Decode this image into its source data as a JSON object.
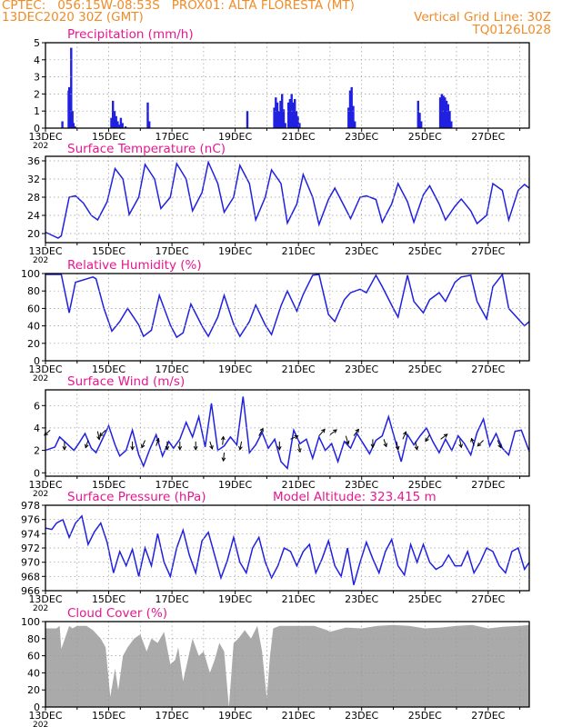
{
  "header": {
    "line1": "CPTEC:   056:15W-08:53S   PROX01: ALTA FLORESTA (MT)",
    "line2_left": "13DEC2020 30Z (GMT)",
    "line2_right": "Vertical Grid Line: 30Z",
    "line3_right": "TQ0126L028"
  },
  "colors": {
    "header": "#f08c28",
    "title": "#e8178f",
    "line": "#2020e0",
    "cloud": "#aaaaaa",
    "grid": "#999999",
    "arrow": "#000000"
  },
  "x_ticks": [
    "13DEC",
    "15DEC",
    "17DEC",
    "19DEC",
    "21DEC",
    "23DEC",
    "25DEC",
    "27DEC"
  ],
  "year_fragment": "202",
  "chart_data": [
    {
      "type": "bar",
      "title": "Precipitation (mm/h)",
      "xlim": [
        0,
        15.3
      ],
      "ylim": [
        0,
        5
      ],
      "yticks": [
        "0",
        "1",
        "2",
        "3",
        "4",
        "5"
      ],
      "bars": [
        [
          0.5,
          0.4
        ],
        [
          0.6,
          0.0
        ],
        [
          0.7,
          2.2
        ],
        [
          0.72,
          2.4
        ],
        [
          0.75,
          1.4
        ],
        [
          0.78,
          4.7
        ],
        [
          0.82,
          1.0
        ],
        [
          0.85,
          0.3
        ],
        [
          0.9,
          0.1
        ],
        [
          2.05,
          0.6
        ],
        [
          2.1,
          1.6
        ],
        [
          2.15,
          1.0
        ],
        [
          2.2,
          0.7
        ],
        [
          2.25,
          0.4
        ],
        [
          2.3,
          0.2
        ],
        [
          2.35,
          0.6
        ],
        [
          2.4,
          0.3
        ],
        [
          2.5,
          0.1
        ],
        [
          3.2,
          1.5
        ],
        [
          3.25,
          0.4
        ],
        [
          6.35,
          1.0
        ],
        [
          7.2,
          1.2
        ],
        [
          7.25,
          1.8
        ],
        [
          7.3,
          1.5
        ],
        [
          7.35,
          1.0
        ],
        [
          7.4,
          1.6
        ],
        [
          7.45,
          2.0
        ],
        [
          7.5,
          1.1
        ],
        [
          7.55,
          0.3
        ],
        [
          7.65,
          1.5
        ],
        [
          7.7,
          1.7
        ],
        [
          7.75,
          2.0
        ],
        [
          7.8,
          1.5
        ],
        [
          7.85,
          1.7
        ],
        [
          7.9,
          1.0
        ],
        [
          7.95,
          0.7
        ],
        [
          8.0,
          0.3
        ],
        [
          9.55,
          1.2
        ],
        [
          9.6,
          2.2
        ],
        [
          9.65,
          2.4
        ],
        [
          9.7,
          1.3
        ],
        [
          9.75,
          0.4
        ],
        [
          11.75,
          1.6
        ],
        [
          11.8,
          0.9
        ],
        [
          11.85,
          0.4
        ],
        [
          12.45,
          1.8
        ],
        [
          12.5,
          2.0
        ],
        [
          12.55,
          1.9
        ],
        [
          12.6,
          1.8
        ],
        [
          12.65,
          1.6
        ],
        [
          12.7,
          1.4
        ],
        [
          12.75,
          1.0
        ],
        [
          12.8,
          0.4
        ]
      ]
    },
    {
      "type": "line",
      "title": "Surface Temperature (nC)",
      "xlim": [
        0,
        15.3
      ],
      "ylim": [
        18,
        37
      ],
      "yticks": [
        "20",
        "24",
        "28",
        "32",
        "36"
      ],
      "x": [
        0,
        0.4,
        0.5,
        0.75,
        0.95,
        1.2,
        1.45,
        1.65,
        1.95,
        2.2,
        2.45,
        2.65,
        2.95,
        3.15,
        3.45,
        3.65,
        3.95,
        4.15,
        4.45,
        4.65,
        4.95,
        5.15,
        5.45,
        5.65,
        5.95,
        6.15,
        6.45,
        6.65,
        6.95,
        7.15,
        7.45,
        7.65,
        7.95,
        8.15,
        8.45,
        8.65,
        8.95,
        9.15,
        9.45,
        9.65,
        9.95,
        10.15,
        10.45,
        10.65,
        10.95,
        11.15,
        11.45,
        11.65,
        11.95,
        12.15,
        12.45,
        12.65,
        12.95,
        13.15,
        13.45,
        13.65,
        13.95,
        14.15,
        14.45,
        14.65,
        14.95,
        15.15,
        15.3
      ],
      "y": [
        20.3,
        19.0,
        19.5,
        28.0,
        28.3,
        26.7,
        24.0,
        23.0,
        27.0,
        34.3,
        32.0,
        24.2,
        28.0,
        35.2,
        32.0,
        25.5,
        28.0,
        35.4,
        32.0,
        25.0,
        29.0,
        35.7,
        31.0,
        24.7,
        28.0,
        35.0,
        31.0,
        23.0,
        28.0,
        34.0,
        31.0,
        22.3,
        26.5,
        33.0,
        28.0,
        22.0,
        27.5,
        30.0,
        26.0,
        23.3,
        28.0,
        28.3,
        27.5,
        22.5,
        26.5,
        31.0,
        27.0,
        22.5,
        28.5,
        30.5,
        26.5,
        23.0,
        26.0,
        27.6,
        25.0,
        22.2,
        24.0,
        31.0,
        29.5,
        23.0,
        29.5,
        30.8,
        30.0
      ]
    },
    {
      "type": "line",
      "title": "Relative Humidity (%)",
      "xlim": [
        0,
        15.3
      ],
      "ylim": [
        0,
        100
      ],
      "yticks": [
        "0",
        "20",
        "40",
        "60",
        "80",
        "100"
      ],
      "x": [
        0,
        0.5,
        0.75,
        0.95,
        1.5,
        1.6,
        1.85,
        2.1,
        2.35,
        2.6,
        2.95,
        3.1,
        3.35,
        3.6,
        3.95,
        4.15,
        4.35,
        4.6,
        4.95,
        5.15,
        5.45,
        5.65,
        5.95,
        6.15,
        6.45,
        6.65,
        6.95,
        7.15,
        7.45,
        7.65,
        7.95,
        8.15,
        8.45,
        8.65,
        8.95,
        9.15,
        9.45,
        9.65,
        9.95,
        10.15,
        10.45,
        10.65,
        11.0,
        11.15,
        11.45,
        11.65,
        11.95,
        12.15,
        12.45,
        12.65,
        12.95,
        13.15,
        13.45,
        13.65,
        13.95,
        14.15,
        14.45,
        14.65,
        14.95,
        15.15,
        15.3
      ],
      "y": [
        99,
        99,
        55,
        90,
        96,
        94,
        60,
        34,
        45,
        60,
        41,
        28,
        35,
        75,
        41,
        27,
        32,
        65,
        40,
        28,
        50,
        75,
        42,
        28,
        45,
        64,
        41,
        30,
        63,
        80,
        57,
        76,
        98,
        99,
        53,
        45,
        70,
        78,
        82,
        78,
        98,
        85,
        60,
        50,
        98,
        68,
        55,
        70,
        78,
        68,
        90,
        96,
        98,
        68,
        48,
        85,
        99,
        60,
        48,
        40,
        45
      ]
    },
    {
      "type": "line",
      "title": "Surface Wind (m/s)",
      "xlim": [
        0,
        15.3
      ],
      "ylim": [
        -0.3,
        7.4
      ],
      "yticks": [
        "0",
        "2",
        "4",
        "6"
      ],
      "x": [
        0,
        0.3,
        0.45,
        0.75,
        0.9,
        1.05,
        1.25,
        1.45,
        1.6,
        1.8,
        2.0,
        2.2,
        2.35,
        2.55,
        2.75,
        2.95,
        3.1,
        3.3,
        3.5,
        3.7,
        3.9,
        4.05,
        4.25,
        4.45,
        4.65,
        4.85,
        5.05,
        5.25,
        5.45,
        5.65,
        5.85,
        6.05,
        6.25,
        6.45,
        6.65,
        6.85,
        7.05,
        7.25,
        7.45,
        7.65,
        7.85,
        8.05,
        8.25,
        8.45,
        8.65,
        8.85,
        9.05,
        9.25,
        9.45,
        9.65,
        9.85,
        10.05,
        10.25,
        10.45,
        10.65,
        10.85,
        11.05,
        11.25,
        11.45,
        11.65,
        11.85,
        12.05,
        12.25,
        12.45,
        12.65,
        12.85,
        13.05,
        13.25,
        13.45,
        13.65,
        13.85,
        14.05,
        14.25,
        14.45,
        14.65,
        14.85,
        15.05,
        15.3
      ],
      "y": [
        2.0,
        2.3,
        3.2,
        2.4,
        2.0,
        2.6,
        3.5,
        2.2,
        1.8,
        3.0,
        4.2,
        2.5,
        1.5,
        2.0,
        3.8,
        1.6,
        0.6,
        2.1,
        3.4,
        1.5,
        2.8,
        2.2,
        3.0,
        4.5,
        3.2,
        5.0,
        2.3,
        6.2,
        2.0,
        2.4,
        3.2,
        2.5,
        6.8,
        1.8,
        2.5,
        3.6,
        2.2,
        3.0,
        1.0,
        0.4,
        3.8,
        2.6,
        3.0,
        1.3,
        3.2,
        2.0,
        2.6,
        1.0,
        2.8,
        2.2,
        3.5,
        2.6,
        1.7,
        2.9,
        3.3,
        5.0,
        3.0,
        1.0,
        3.4,
        2.5,
        3.3,
        4.0,
        2.8,
        1.8,
        3.0,
        2.0,
        3.3,
        2.6,
        1.6,
        3.6,
        4.8,
        2.4,
        3.5,
        2.2,
        1.6,
        3.7,
        3.8,
        1.9
      ],
      "arrows": [
        [
          0.15,
          3.8,
          -0.7,
          -0.6
        ],
        [
          0.6,
          2.8,
          0.0,
          -1.0
        ],
        [
          1.35,
          2.9,
          -0.3,
          -0.9
        ],
        [
          1.65,
          3.7,
          0.2,
          -1.0
        ],
        [
          1.9,
          3.8,
          -0.7,
          -0.7
        ],
        [
          2.75,
          2.8,
          0.0,
          -1.0
        ],
        [
          3.15,
          2.9,
          -0.4,
          -0.9
        ],
        [
          3.5,
          2.4,
          0.3,
          0.9
        ],
        [
          3.85,
          2.8,
          0.0,
          -1.0
        ],
        [
          4.25,
          2.8,
          0.0,
          -1.0
        ],
        [
          4.75,
          2.8,
          0.0,
          -1.0
        ],
        [
          5.2,
          2.8,
          0.3,
          -0.9
        ],
        [
          5.6,
          2.5,
          0.1,
          1.0
        ],
        [
          5.65,
          1.8,
          -0.1,
          -1.0
        ],
        [
          6.2,
          2.8,
          -0.2,
          -1.0
        ],
        [
          6.75,
          3.3,
          0.5,
          0.9
        ],
        [
          7.4,
          2.8,
          0.0,
          -1.0
        ],
        [
          7.75,
          3.0,
          0.9,
          0.4
        ],
        [
          8.0,
          2.6,
          0.2,
          -1.0
        ],
        [
          8.65,
          3.3,
          0.7,
          0.8
        ],
        [
          9.0,
          3.4,
          0.8,
          0.6
        ],
        [
          9.5,
          3.3,
          0.3,
          -1.0
        ],
        [
          9.75,
          3.3,
          0.6,
          0.8
        ],
        [
          10.35,
          3.0,
          0.0,
          -1.0
        ],
        [
          10.7,
          3.0,
          0.3,
          -0.9
        ],
        [
          11.1,
          2.8,
          0.2,
          -1.0
        ],
        [
          11.3,
          3.0,
          0.4,
          0.9
        ],
        [
          11.7,
          2.8,
          0.2,
          -1.0
        ],
        [
          12.15,
          3.4,
          -0.5,
          -0.8
        ],
        [
          12.5,
          3.0,
          0.8,
          0.6
        ],
        [
          13.1,
          3.0,
          0.2,
          -1.0
        ],
        [
          13.55,
          2.4,
          -0.3,
          0.9
        ],
        [
          13.85,
          2.9,
          -0.7,
          -0.7
        ],
        [
          14.3,
          2.9,
          0.4,
          -0.9
        ]
      ]
    },
    {
      "type": "line",
      "title": "Surface Pressure (hPa)",
      "annotation": "Model Altitude: 323.415 m",
      "xlim": [
        0,
        15.3
      ],
      "ylim": [
        966,
        978
      ],
      "yticks": [
        "966",
        "968",
        "970",
        "972",
        "974",
        "976",
        "978"
      ],
      "x": [
        0,
        0.2,
        0.35,
        0.55,
        0.75,
        0.95,
        1.15,
        1.35,
        1.55,
        1.75,
        1.95,
        2.15,
        2.35,
        2.55,
        2.75,
        2.95,
        3.15,
        3.35,
        3.55,
        3.75,
        3.95,
        4.15,
        4.35,
        4.55,
        4.75,
        4.95,
        5.15,
        5.35,
        5.55,
        5.75,
        5.95,
        6.15,
        6.35,
        6.55,
        6.75,
        6.95,
        7.15,
        7.35,
        7.55,
        7.75,
        7.95,
        8.15,
        8.35,
        8.55,
        8.75,
        8.95,
        9.15,
        9.35,
        9.55,
        9.75,
        9.95,
        10.15,
        10.35,
        10.55,
        10.75,
        10.95,
        11.15,
        11.35,
        11.55,
        11.75,
        11.95,
        12.15,
        12.35,
        12.55,
        12.75,
        12.95,
        13.15,
        13.35,
        13.55,
        13.75,
        13.95,
        14.15,
        14.35,
        14.55,
        14.75,
        14.95,
        15.15,
        15.3
      ],
      "y": [
        974.8,
        974.6,
        975.5,
        976.0,
        973.5,
        975.5,
        976.5,
        972.5,
        974.3,
        975.5,
        972.8,
        968.5,
        971.5,
        969.5,
        971.8,
        968.0,
        972.0,
        969.5,
        974.0,
        970.0,
        968.0,
        972.0,
        974.5,
        971.0,
        968.5,
        973.0,
        974.2,
        971.0,
        967.8,
        970.2,
        973.5,
        970.0,
        968.5,
        972.0,
        973.5,
        970.0,
        967.8,
        969.5,
        972.0,
        971.5,
        969.5,
        971.5,
        972.5,
        968.5,
        970.5,
        973.0,
        969.5,
        968.0,
        972.0,
        966.8,
        970.0,
        972.8,
        970.5,
        968.5,
        971.5,
        973.2,
        969.5,
        968.2,
        972.5,
        970.0,
        972.5,
        970.0,
        969.0,
        969.5,
        971.0,
        969.5,
        969.5,
        971.5,
        968.5,
        970.0,
        972.0,
        971.5,
        969.5,
        968.5,
        971.5,
        972.0,
        969.0,
        970.0
      ]
    },
    {
      "type": "area",
      "title": "Cloud Cover (%)",
      "xlim": [
        0,
        15.3
      ],
      "ylim": [
        0,
        100
      ],
      "yticks": [
        "0",
        "20",
        "40",
        "60",
        "80",
        "100"
      ],
      "x": [
        0,
        0.35,
        0.45,
        0.5,
        0.75,
        0.85,
        1.0,
        1.3,
        1.5,
        1.75,
        1.9,
        2.05,
        2.2,
        2.3,
        2.45,
        2.6,
        2.8,
        3.0,
        3.2,
        3.35,
        3.55,
        3.75,
        3.95,
        4.1,
        4.2,
        4.35,
        4.5,
        4.65,
        4.85,
        5.0,
        5.2,
        5.35,
        5.5,
        5.65,
        5.8,
        5.95,
        6.1,
        6.3,
        6.5,
        6.7,
        6.85,
        7.0,
        7.1,
        7.2,
        7.4,
        8.5,
        8.9,
        9.0,
        9.5,
        10.0,
        10.5,
        11.0,
        11.5,
        12.0,
        12.5,
        13.0,
        13.5,
        14.0,
        14.5,
        15.0,
        15.3
      ],
      "y": [
        92,
        92,
        95,
        68,
        95,
        92,
        95,
        95,
        90,
        80,
        70,
        12,
        45,
        20,
        60,
        70,
        80,
        85,
        65,
        80,
        75,
        88,
        50,
        55,
        70,
        30,
        55,
        80,
        60,
        65,
        40,
        55,
        75,
        65,
        0,
        75,
        80,
        90,
        80,
        95,
        65,
        10,
        60,
        92,
        95,
        95,
        90,
        88,
        93,
        92,
        95,
        96,
        95,
        92,
        93,
        95,
        96,
        92,
        94,
        95,
        96
      ]
    }
  ]
}
